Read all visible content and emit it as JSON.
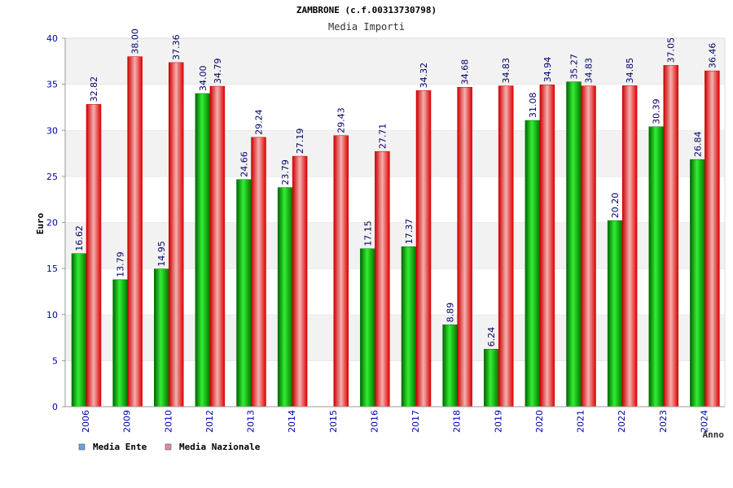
{
  "chart_data": {
    "type": "bar",
    "title": "ZAMBRONE (c.f.00313730798)",
    "subtitle": "Media Importi",
    "xlabel": "Anno",
    "ylabel": "Euro",
    "ylim": [
      0,
      40
    ],
    "yticks": [
      "0",
      "5",
      "10",
      "15",
      "20",
      "25",
      "30",
      "35",
      "40"
    ],
    "grid": true,
    "legend_position": "bottom-left",
    "categories": [
      "2006",
      "2009",
      "2010",
      "2012",
      "2013",
      "2014",
      "2015",
      "2016",
      "2017",
      "2018",
      "2019",
      "2020",
      "2021",
      "2022",
      "2023",
      "2024"
    ],
    "series": [
      {
        "name": "Media Ente",
        "color": "#00aa00",
        "legend_color": "#66a3e0",
        "values": [
          16.62,
          13.79,
          14.95,
          34.0,
          24.66,
          23.79,
          null,
          17.15,
          17.37,
          8.89,
          6.24,
          31.08,
          35.27,
          20.2,
          30.39,
          26.84
        ],
        "labels": [
          "16.62",
          "13.79",
          "14.95",
          "34.00",
          "24.66",
          "23.79",
          "",
          "17.15",
          "17.37",
          "8.89",
          "6.24",
          "31.08",
          "35.27",
          "20.20",
          "30.39",
          "26.84"
        ]
      },
      {
        "name": "Media Nazionale",
        "color": "#ee1111",
        "legend_color": "#dd88aa",
        "values": [
          32.82,
          38.0,
          37.36,
          34.79,
          29.24,
          27.19,
          29.43,
          27.71,
          34.32,
          34.68,
          34.83,
          34.94,
          34.83,
          34.85,
          37.05,
          36.46
        ],
        "labels": [
          "32.82",
          "38.00",
          "37.36",
          "34.79",
          "29.24",
          "27.19",
          "29.43",
          "27.71",
          "34.32",
          "34.68",
          "34.83",
          "34.94",
          "34.83",
          "34.85",
          "37.05",
          "36.46"
        ]
      }
    ]
  }
}
